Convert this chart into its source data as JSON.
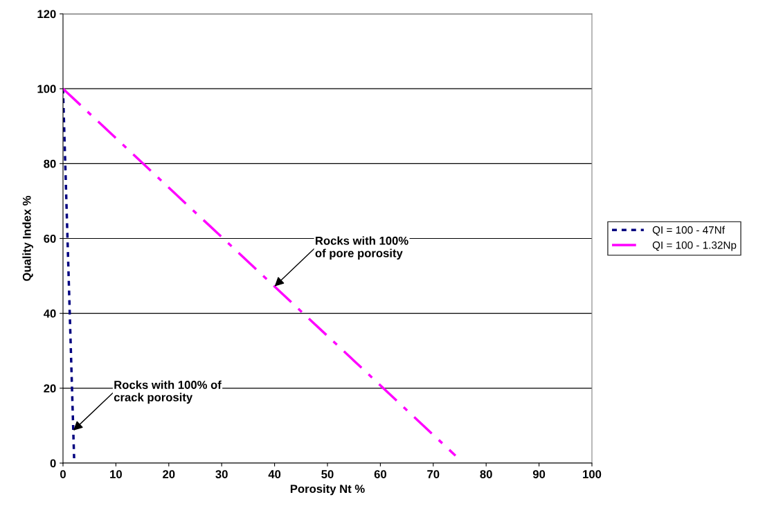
{
  "chart_data": {
    "type": "line",
    "xlabel": "Porosity Nt %",
    "ylabel": "Quality Index %",
    "xlim": [
      0,
      100
    ],
    "ylim": [
      0,
      120
    ],
    "xticks": [
      0,
      10,
      20,
      30,
      40,
      50,
      60,
      70,
      80,
      90,
      100
    ],
    "yticks": [
      0,
      20,
      40,
      60,
      80,
      100,
      120
    ],
    "grid": "y",
    "legend": "right",
    "marker": "none",
    "series": [
      {
        "name": "QI = 100 - 47Nf",
        "color": "#000080",
        "line_style": "dotted",
        "x": [
          0,
          2.1
        ],
        "values": [
          100,
          1.3
        ]
      },
      {
        "name": "QI = 100 - 1.32Np",
        "color": "#ff00ff",
        "line_style": "dashed",
        "x": [
          0,
          74.2
        ],
        "values": [
          100,
          2
        ]
      }
    ],
    "annotations": [
      {
        "text": "Rocks with 100%\nof pore porosity",
        "x": 40,
        "y": 47.2
      },
      {
        "text": "Rocks with 100% of\ncrack porosity",
        "x": 1.95,
        "y": 8.7
      }
    ]
  }
}
